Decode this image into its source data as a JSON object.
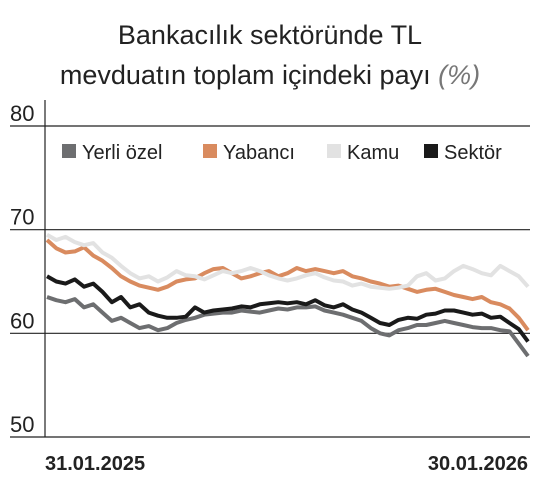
{
  "chart_data": {
    "type": "line",
    "title": [
      "Bankacılık sektöründe TL",
      "mevduatın toplam içindeki payı"
    ],
    "unit": "(%)",
    "categories": [
      "31.01.2025",
      null,
      null,
      null,
      null,
      null,
      null,
      null,
      null,
      null,
      null,
      null,
      null,
      null,
      null,
      null,
      null,
      null,
      null,
      null,
      null,
      null,
      null,
      null,
      null,
      null,
      null,
      null,
      null,
      null,
      null,
      null,
      null,
      null,
      null,
      null,
      null,
      null,
      null,
      null,
      null,
      null,
      null,
      null,
      null,
      null,
      null,
      null,
      null,
      null,
      null,
      null,
      "30.01.2026"
    ],
    "series": [
      {
        "name": "Yerli özel",
        "color": "#6d6e70",
        "values": [
          63.5,
          63.2,
          63,
          63.3,
          62.5,
          62.8,
          62,
          61.2,
          61.5,
          61,
          60.5,
          60.7,
          60.3,
          60.5,
          61,
          61.3,
          61.5,
          61.8,
          61.9,
          62,
          62,
          62.2,
          62.1,
          62,
          62.2,
          62.4,
          62.3,
          62.5,
          62.5,
          62.6,
          62.2,
          62,
          61.8,
          61.5,
          61.2,
          60.5,
          60,
          59.8,
          60.3,
          60.5,
          60.8,
          60.8,
          61,
          61.2,
          61,
          60.8,
          60.6,
          60.5,
          60.5,
          60.3,
          60.2,
          59,
          57.8
        ]
      },
      {
        "name": "Yabancı",
        "color": "#d98b5f",
        "values": [
          69,
          68.2,
          67.8,
          67.9,
          68.3,
          67.5,
          67,
          66.3,
          65.5,
          65,
          64.6,
          64.4,
          64.2,
          64.5,
          65,
          65.2,
          65.3,
          65.8,
          66.2,
          66.3,
          65.8,
          65.3,
          65.5,
          65.8,
          66,
          65.5,
          65.8,
          66.3,
          66,
          66.2,
          66,
          65.8,
          66,
          65.5,
          65.3,
          65,
          64.8,
          64.5,
          64.6,
          64.3,
          64,
          64.2,
          64.3,
          64,
          63.7,
          63.5,
          63.3,
          63.5,
          63,
          62.8,
          62.4,
          61.5,
          60.3
        ]
      },
      {
        "name": "Kamu",
        "color": "#e2e2e2",
        "values": [
          69.5,
          69,
          69.3,
          68.8,
          68.5,
          68.7,
          67.8,
          67.3,
          66.5,
          65.8,
          65.3,
          65.5,
          65,
          65.4,
          66,
          65.6,
          65.5,
          65.2,
          65.6,
          66,
          65.8,
          66,
          66.3,
          66,
          65.6,
          65.3,
          65.1,
          65.3,
          65.6,
          65.8,
          65.4,
          65.1,
          65,
          64.6,
          64.8,
          64.5,
          64.4,
          64.3,
          64.4,
          64.6,
          65.5,
          65.8,
          65.1,
          65.3,
          66,
          66.5,
          66.2,
          65.8,
          65.6,
          66.5,
          66,
          65.5,
          64.5
        ]
      },
      {
        "name": "Sektör",
        "color": "#1a1a1a",
        "values": [
          65.5,
          65,
          64.8,
          65.2,
          64.5,
          64.8,
          64,
          63,
          63.5,
          62.5,
          62.8,
          62,
          61.7,
          61.5,
          61.5,
          61.6,
          62.5,
          62,
          62.2,
          62.3,
          62.4,
          62.6,
          62.5,
          62.8,
          62.9,
          63,
          62.9,
          63,
          62.8,
          63.2,
          62.7,
          62.5,
          62.8,
          62.3,
          62,
          61.5,
          61,
          60.8,
          61.3,
          61.5,
          61.4,
          61.8,
          61.9,
          62.2,
          62.2,
          62,
          61.8,
          61.9,
          61.5,
          61.6,
          61,
          60.4,
          59.2
        ]
      }
    ],
    "ylim": [
      50,
      80
    ],
    "yticks": [
      50,
      60,
      70,
      80
    ],
    "grid": true
  }
}
